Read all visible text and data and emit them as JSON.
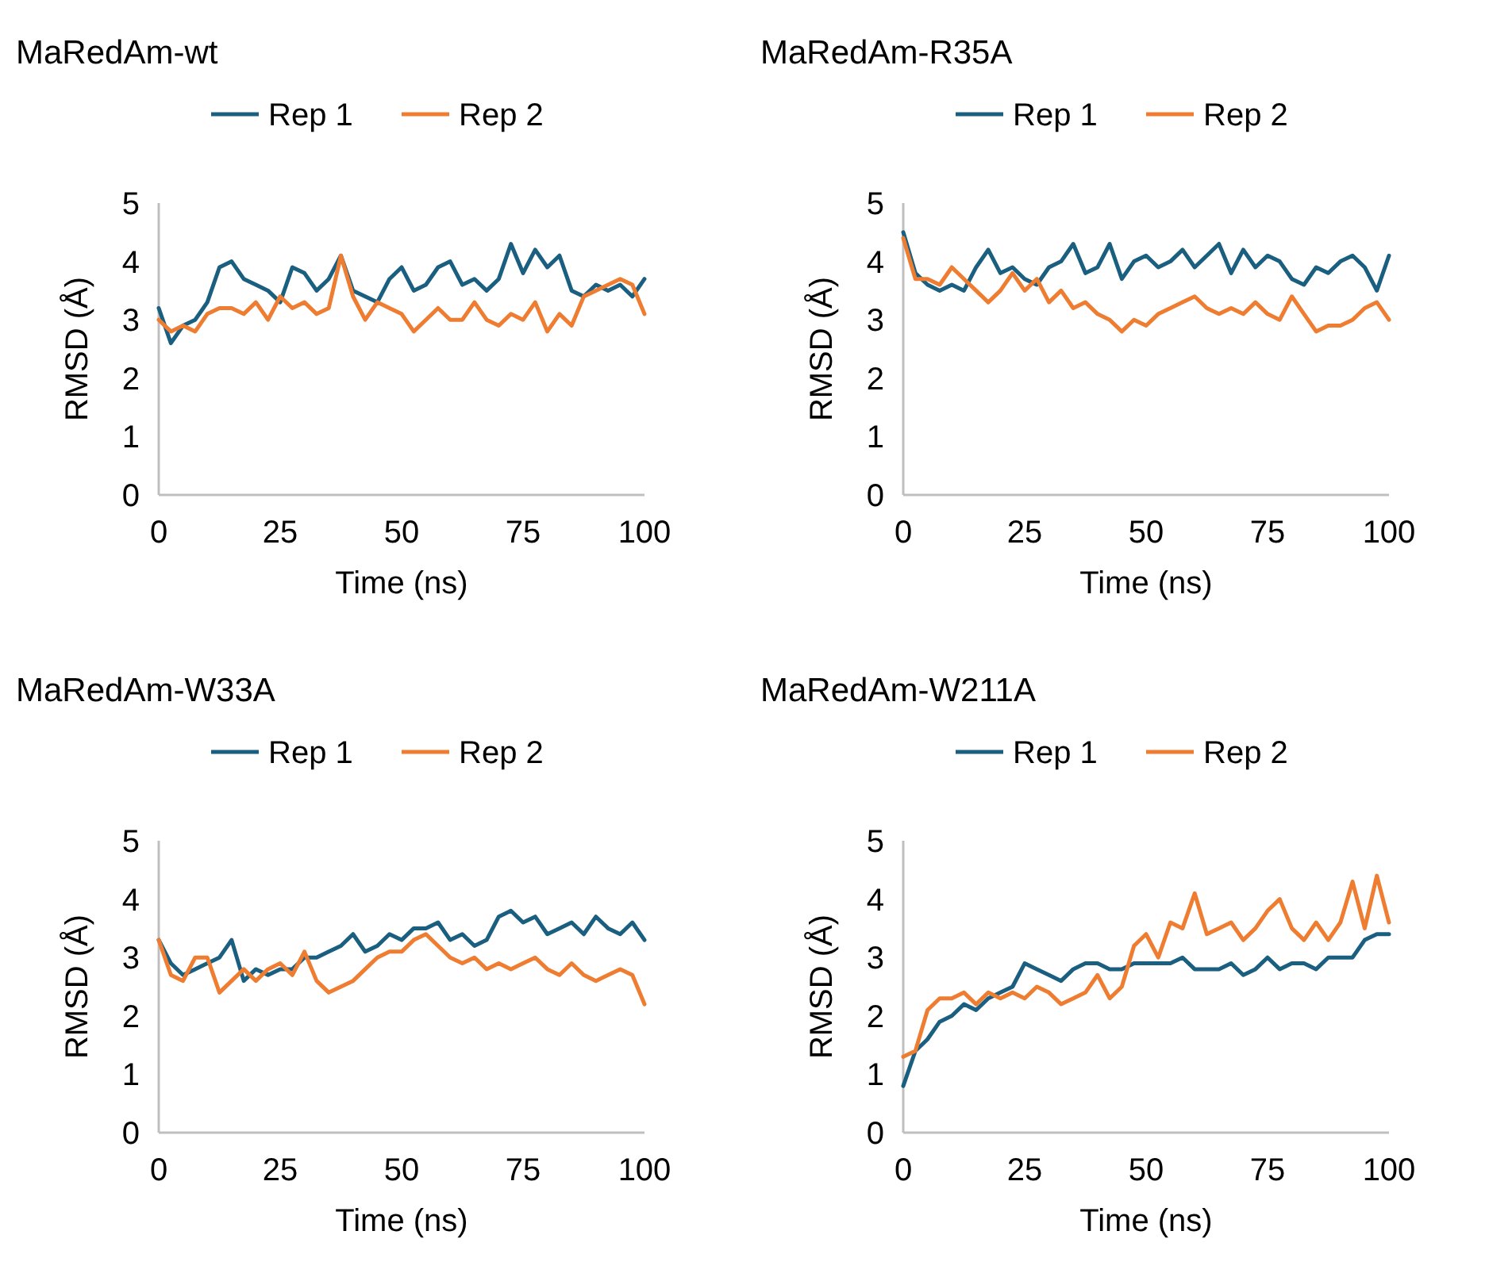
{
  "chart_data": [
    {
      "type": "line",
      "title": "MaRedAm-wt",
      "xlabel": "Time (ns)",
      "ylabel": "RMSD (Å)",
      "legend": "top",
      "xlim": [
        0,
        100
      ],
      "xticks": [
        0,
        25,
        50,
        75,
        100
      ],
      "ylim": [
        0,
        5
      ],
      "yticks": [
        0,
        1,
        2,
        3,
        4,
        5
      ],
      "x": [
        0,
        2.5,
        5,
        7.5,
        10,
        12.5,
        15,
        17.5,
        20,
        22.5,
        25,
        27.5,
        30,
        32.5,
        35,
        37.5,
        40,
        42.5,
        45,
        47.5,
        50,
        52.5,
        55,
        57.5,
        60,
        62.5,
        65,
        67.5,
        70,
        72.5,
        75,
        77.5,
        80,
        82.5,
        85,
        87.5,
        90,
        92.5,
        95,
        97.5,
        100
      ],
      "series": [
        {
          "name": "Rep 1",
          "color": "#1b5f80",
          "values": [
            3.2,
            2.6,
            2.9,
            3.0,
            3.3,
            3.9,
            4.0,
            3.7,
            3.6,
            3.5,
            3.3,
            3.9,
            3.8,
            3.5,
            3.7,
            4.1,
            3.5,
            3.4,
            3.3,
            3.7,
            3.9,
            3.5,
            3.6,
            3.9,
            4.0,
            3.6,
            3.7,
            3.5,
            3.7,
            4.3,
            3.8,
            4.2,
            3.9,
            4.1,
            3.5,
            3.4,
            3.6,
            3.5,
            3.6,
            3.4,
            3.7
          ]
        },
        {
          "name": "Rep 2",
          "color": "#ee7d31",
          "values": [
            3.0,
            2.8,
            2.9,
            2.8,
            3.1,
            3.2,
            3.2,
            3.1,
            3.3,
            3.0,
            3.4,
            3.2,
            3.3,
            3.1,
            3.2,
            4.1,
            3.4,
            3.0,
            3.3,
            3.2,
            3.1,
            2.8,
            3.0,
            3.2,
            3.0,
            3.0,
            3.3,
            3.0,
            2.9,
            3.1,
            3.0,
            3.3,
            2.8,
            3.1,
            2.9,
            3.4,
            3.5,
            3.6,
            3.7,
            3.6,
            3.1
          ]
        }
      ]
    },
    {
      "type": "line",
      "title": "MaRedAm-R35A",
      "xlabel": "Time (ns)",
      "ylabel": "RMSD (Å)",
      "legend": "top",
      "xlim": [
        0,
        100
      ],
      "xticks": [
        0,
        25,
        50,
        75,
        100
      ],
      "ylim": [
        0,
        5
      ],
      "yticks": [
        0,
        1,
        2,
        3,
        4,
        5
      ],
      "x": [
        0,
        2.5,
        5,
        7.5,
        10,
        12.5,
        15,
        17.5,
        20,
        22.5,
        25,
        27.5,
        30,
        32.5,
        35,
        37.5,
        40,
        42.5,
        45,
        47.5,
        50,
        52.5,
        55,
        57.5,
        60,
        62.5,
        65,
        67.5,
        70,
        72.5,
        75,
        77.5,
        80,
        82.5,
        85,
        87.5,
        90,
        92.5,
        95,
        97.5,
        100
      ],
      "series": [
        {
          "name": "Rep 1",
          "color": "#1b5f80",
          "values": [
            4.5,
            3.8,
            3.6,
            3.5,
            3.6,
            3.5,
            3.9,
            4.2,
            3.8,
            3.9,
            3.7,
            3.6,
            3.9,
            4.0,
            4.3,
            3.8,
            3.9,
            4.3,
            3.7,
            4.0,
            4.1,
            3.9,
            4.0,
            4.2,
            3.9,
            4.1,
            4.3,
            3.8,
            4.2,
            3.9,
            4.1,
            4.0,
            3.7,
            3.6,
            3.9,
            3.8,
            4.0,
            4.1,
            3.9,
            3.5,
            4.1
          ]
        },
        {
          "name": "Rep 2",
          "color": "#ee7d31",
          "values": [
            4.4,
            3.7,
            3.7,
            3.6,
            3.9,
            3.7,
            3.5,
            3.3,
            3.5,
            3.8,
            3.5,
            3.7,
            3.3,
            3.5,
            3.2,
            3.3,
            3.1,
            3.0,
            2.8,
            3.0,
            2.9,
            3.1,
            3.2,
            3.3,
            3.4,
            3.2,
            3.1,
            3.2,
            3.1,
            3.3,
            3.1,
            3.0,
            3.4,
            3.1,
            2.8,
            2.9,
            2.9,
            3.0,
            3.2,
            3.3,
            3.0
          ]
        }
      ]
    },
    {
      "type": "line",
      "title": "MaRedAm-W33A",
      "xlabel": "Time (ns)",
      "ylabel": "RMSD (Å)",
      "legend": "top",
      "xlim": [
        0,
        100
      ],
      "xticks": [
        0,
        25,
        50,
        75,
        100
      ],
      "ylim": [
        0,
        5
      ],
      "yticks": [
        0,
        1,
        2,
        3,
        4,
        5
      ],
      "x": [
        0,
        2.5,
        5,
        7.5,
        10,
        12.5,
        15,
        17.5,
        20,
        22.5,
        25,
        27.5,
        30,
        32.5,
        35,
        37.5,
        40,
        42.5,
        45,
        47.5,
        50,
        52.5,
        55,
        57.5,
        60,
        62.5,
        65,
        67.5,
        70,
        72.5,
        75,
        77.5,
        80,
        82.5,
        85,
        87.5,
        90,
        92.5,
        95,
        97.5,
        100
      ],
      "series": [
        {
          "name": "Rep 1",
          "color": "#1b5f80",
          "values": [
            3.3,
            2.9,
            2.7,
            2.8,
            2.9,
            3.0,
            3.3,
            2.6,
            2.8,
            2.7,
            2.8,
            2.8,
            3.0,
            3.0,
            3.1,
            3.2,
            3.4,
            3.1,
            3.2,
            3.4,
            3.3,
            3.5,
            3.5,
            3.6,
            3.3,
            3.4,
            3.2,
            3.3,
            3.7,
            3.8,
            3.6,
            3.7,
            3.4,
            3.5,
            3.6,
            3.4,
            3.7,
            3.5,
            3.4,
            3.6,
            3.3
          ]
        },
        {
          "name": "Rep 2",
          "color": "#ee7d31",
          "values": [
            3.3,
            2.7,
            2.6,
            3.0,
            3.0,
            2.4,
            2.6,
            2.8,
            2.6,
            2.8,
            2.9,
            2.7,
            3.1,
            2.6,
            2.4,
            2.5,
            2.6,
            2.8,
            3.0,
            3.1,
            3.1,
            3.3,
            3.4,
            3.2,
            3.0,
            2.9,
            3.0,
            2.8,
            2.9,
            2.8,
            2.9,
            3.0,
            2.8,
            2.7,
            2.9,
            2.7,
            2.6,
            2.7,
            2.8,
            2.7,
            2.2
          ]
        }
      ]
    },
    {
      "type": "line",
      "title": "MaRedAm-W211A",
      "xlabel": "Time (ns)",
      "ylabel": "RMSD (Å)",
      "legend": "top",
      "xlim": [
        0,
        100
      ],
      "xticks": [
        0,
        25,
        50,
        75,
        100
      ],
      "ylim": [
        0,
        5
      ],
      "yticks": [
        0,
        1,
        2,
        3,
        4,
        5
      ],
      "x": [
        0,
        2.5,
        5,
        7.5,
        10,
        12.5,
        15,
        17.5,
        20,
        22.5,
        25,
        27.5,
        30,
        32.5,
        35,
        37.5,
        40,
        42.5,
        45,
        47.5,
        50,
        52.5,
        55,
        57.5,
        60,
        62.5,
        65,
        67.5,
        70,
        72.5,
        75,
        77.5,
        80,
        82.5,
        85,
        87.5,
        90,
        92.5,
        95,
        97.5,
        100
      ],
      "series": [
        {
          "name": "Rep 1",
          "color": "#1b5f80",
          "values": [
            0.8,
            1.4,
            1.6,
            1.9,
            2.0,
            2.2,
            2.1,
            2.3,
            2.4,
            2.5,
            2.9,
            2.8,
            2.7,
            2.6,
            2.8,
            2.9,
            2.9,
            2.8,
            2.8,
            2.9,
            2.9,
            2.9,
            2.9,
            3.0,
            2.8,
            2.8,
            2.8,
            2.9,
            2.7,
            2.8,
            3.0,
            2.8,
            2.9,
            2.9,
            2.8,
            3.0,
            3.0,
            3.0,
            3.3,
            3.4,
            3.4
          ]
        },
        {
          "name": "Rep 2",
          "color": "#ee7d31",
          "values": [
            1.3,
            1.4,
            2.1,
            2.3,
            2.3,
            2.4,
            2.2,
            2.4,
            2.3,
            2.4,
            2.3,
            2.5,
            2.4,
            2.2,
            2.3,
            2.4,
            2.7,
            2.3,
            2.5,
            3.2,
            3.4,
            3.0,
            3.6,
            3.5,
            4.1,
            3.4,
            3.5,
            3.6,
            3.3,
            3.5,
            3.8,
            4.0,
            3.5,
            3.3,
            3.6,
            3.3,
            3.6,
            4.3,
            3.5,
            4.4,
            3.6
          ]
        }
      ]
    }
  ]
}
